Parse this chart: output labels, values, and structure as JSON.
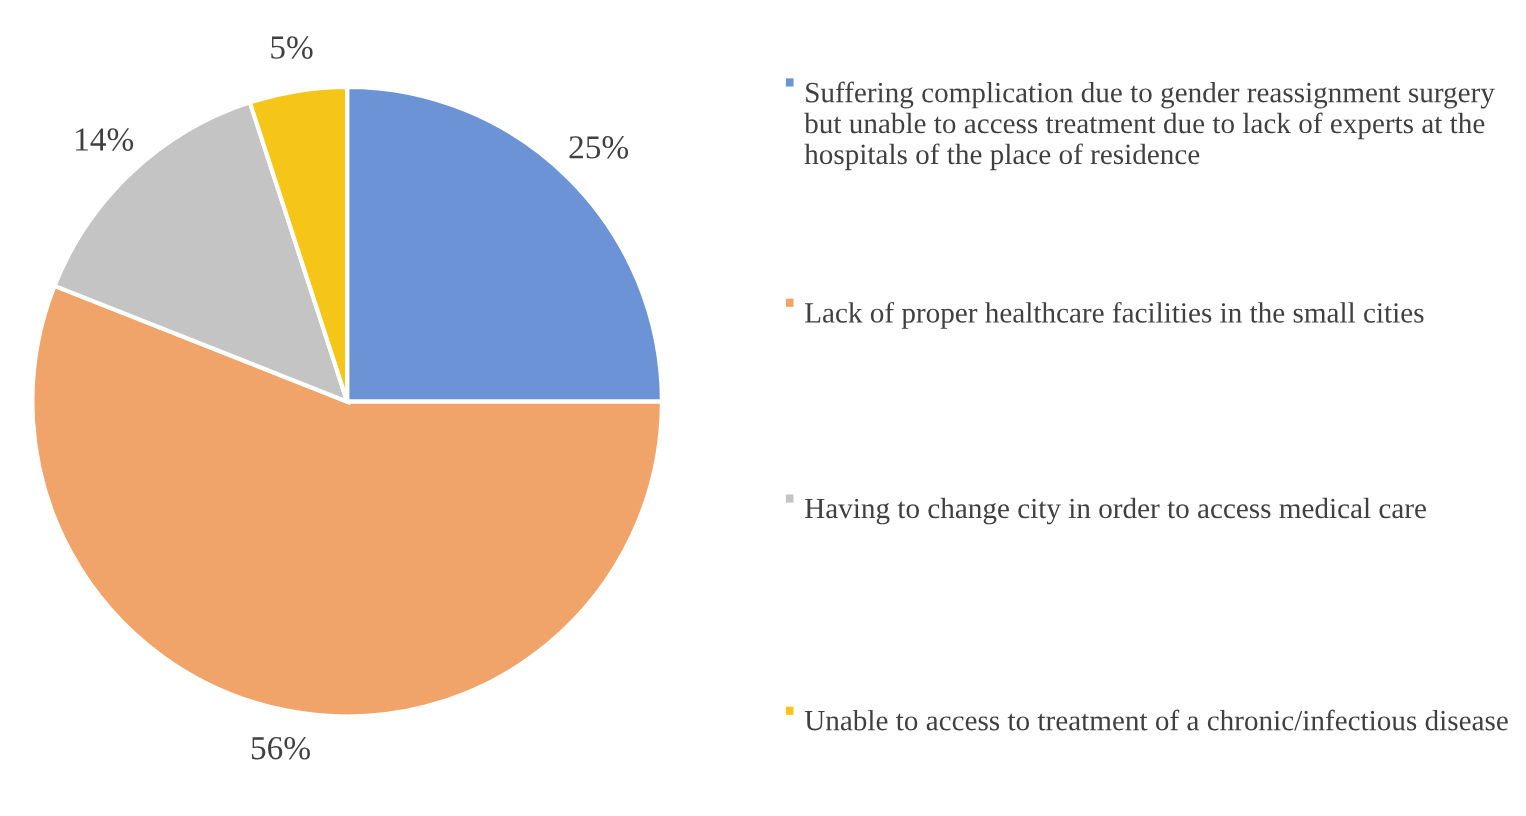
{
  "chart_data": {
    "type": "pie",
    "categories": [
      "Suffering complication due to gender reassignment surgery but unable to access treatment due to lack of experts at the hospitals of the place of residence",
      "Lack of proper healthcare facilities in the small cities",
      "Having to change city in order to access medical care",
      "Unable to access to treatment of a chronic/infectious disease"
    ],
    "values": [
      25,
      56,
      14,
      5
    ],
    "value_labels": [
      "25%",
      "56%",
      "14%",
      "5%"
    ],
    "colors": [
      "#6b93d6",
      "#f0a46a",
      "#c4c4c4",
      "#f5c518"
    ],
    "legend": "right"
  }
}
